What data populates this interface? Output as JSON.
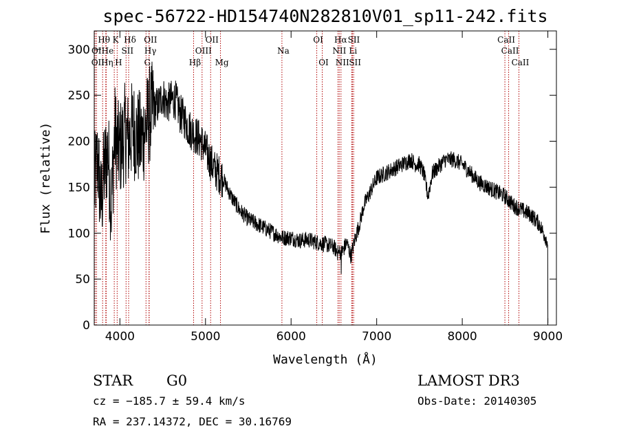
{
  "chart_data": {
    "type": "line",
    "title": "spec-56722-HD154740N282810V01_sp11-242.fits",
    "xlabel": "Wavelength (Å)",
    "ylabel": "Flux (relative)",
    "xlim": [
      3700,
      9100
    ],
    "ylim": [
      0,
      320
    ],
    "x_ticks": [
      4000,
      5000,
      6000,
      7000,
      8000,
      9000
    ],
    "y_ticks": [
      0,
      50,
      100,
      150,
      200,
      250,
      300
    ],
    "grid": false,
    "spectrum": {
      "x": [
        3700,
        3740,
        3780,
        3820,
        3860,
        3900,
        3940,
        3980,
        4020,
        4060,
        4100,
        4150,
        4200,
        4250,
        4300,
        4350,
        4400,
        4450,
        4500,
        4550,
        4600,
        4650,
        4700,
        4750,
        4800,
        4850,
        4900,
        4950,
        5000,
        5050,
        5100,
        5150,
        5200,
        5300,
        5400,
        5500,
        5600,
        5700,
        5800,
        5900,
        6000,
        6100,
        6200,
        6300,
        6400,
        6500,
        6550,
        6600,
        6650,
        6700,
        6750,
        6800,
        6850,
        6900,
        6950,
        7000,
        7100,
        7200,
        7300,
        7400,
        7450,
        7500,
        7550,
        7600,
        7650,
        7700,
        7800,
        7900,
        8000,
        8100,
        8200,
        8300,
        8400,
        8500,
        8600,
        8700,
        8800,
        8900,
        9000
      ],
      "y": [
        150,
        180,
        130,
        170,
        190,
        130,
        210,
        190,
        195,
        210,
        200,
        215,
        205,
        200,
        215,
        230,
        235,
        240,
        250,
        240,
        245,
        245,
        230,
        225,
        215,
        210,
        205,
        200,
        190,
        180,
        170,
        165,
        160,
        140,
        125,
        115,
        110,
        105,
        100,
        95,
        95,
        92,
        93,
        90,
        88,
        85,
        78,
        80,
        90,
        75,
        95,
        110,
        130,
        140,
        150,
        160,
        165,
        170,
        175,
        180,
        175,
        175,
        165,
        140,
        165,
        170,
        180,
        180,
        175,
        165,
        155,
        150,
        145,
        140,
        130,
        125,
        120,
        110,
        90
      ]
    },
    "lines": {
      "row1": [
        {
          "label": "Hθ",
          "x": 3798
        },
        {
          "label": "K",
          "x": 3934
        },
        {
          "label": "Hδ",
          "x": 4102
        },
        {
          "label": "OII",
          "x": 4342
        },
        {
          "label": "OII",
          "x": 5060
        },
        {
          "label": "OI",
          "x": 6300
        },
        {
          "label": "Hα",
          "x": 6563
        },
        {
          "label": "SII",
          "x": 6717
        },
        {
          "label": "CaII",
          "x": 8498
        }
      ],
      "row2": [
        {
          "label": "OI",
          "x": 3710
        },
        {
          "label": "He",
          "x": 3840
        },
        {
          "label": "SII",
          "x": 4072
        },
        {
          "label": "Hγ",
          "x": 4340
        },
        {
          "label": "OIII",
          "x": 4960
        },
        {
          "label": "Na",
          "x": 5893
        },
        {
          "label": "NII",
          "x": 6548
        },
        {
          "label": "Li",
          "x": 6708
        },
        {
          "label": "CaII",
          "x": 8542
        }
      ],
      "row3": [
        {
          "label": "OII",
          "x": 3727
        },
        {
          "label": "Hη",
          "x": 3835
        },
        {
          "label": "H",
          "x": 3968
        },
        {
          "label": "G",
          "x": 4305
        },
        {
          "label": "Hβ",
          "x": 4861
        },
        {
          "label": "Mg",
          "x": 5175
        },
        {
          "label": "OI",
          "x": 6364
        },
        {
          "label": "NII",
          "x": 6583
        },
        {
          "label": "SII",
          "x": 6731
        },
        {
          "label": "CaII",
          "x": 8662
        }
      ]
    },
    "colors": {
      "spectrum": "#000000",
      "lines": "#b00000"
    }
  },
  "info": {
    "class_label": "STAR",
    "subclass": "G0",
    "survey": "LAMOST DR3",
    "redshift": "cz = −185.7 ± 59.4 km/s",
    "obs_date": "Obs-Date: 20140305",
    "coords": "RA = 237.14372, DEC =  30.16769"
  }
}
